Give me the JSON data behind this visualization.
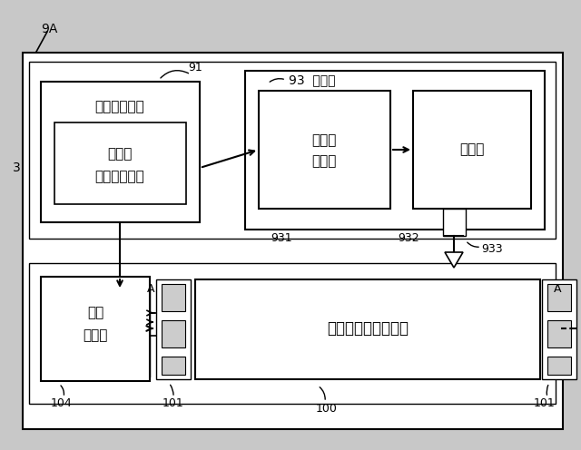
{
  "bg_color": "#c8c8c8",
  "fig_bg": "#ffffff",
  "label_9A": "9A",
  "label_91": "91",
  "label_93": "93  彫刻機",
  "label_931": "931",
  "label_932": "932",
  "label_933": "933",
  "label_3": "3",
  "label_104": "104",
  "label_101": "101",
  "label_100": "100",
  "label_A": "A",
  "text_computer": "コンピュータ",
  "text_sheet": "シート",
  "text_height": "ハイトデータ",
  "text_engraver_ctrl1": "彫刻機",
  "text_engraver_ctrl2": "制御部",
  "text_drive": "駆動部",
  "text_rotdrive1": "回転",
  "text_rotdrive2": "駆動部",
  "text_cylinder": "エンボス版シリンダ"
}
